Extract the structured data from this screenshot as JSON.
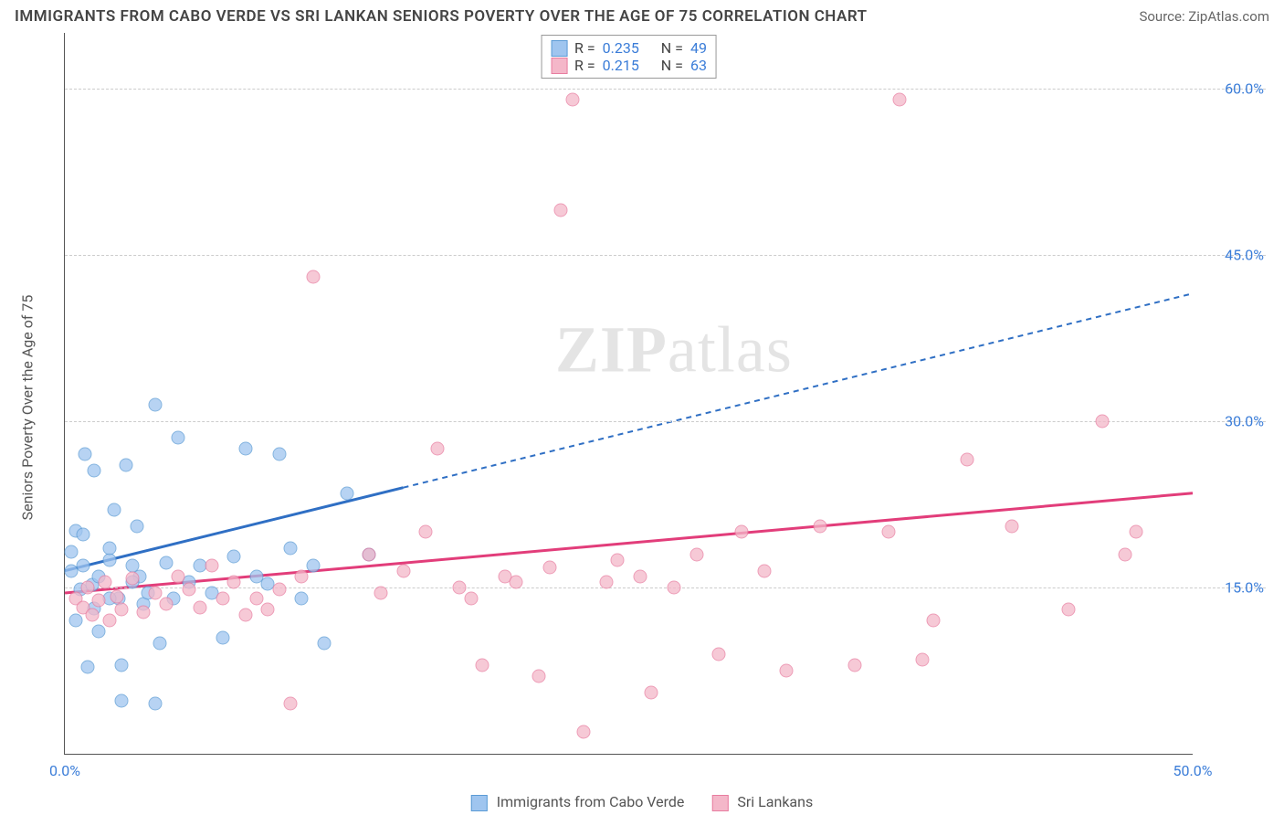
{
  "header": {
    "title": "IMMIGRANTS FROM CABO VERDE VS SRI LANKAN SENIORS POVERTY OVER THE AGE OF 75 CORRELATION CHART",
    "source": "Source: ZipAtlas.com"
  },
  "chart": {
    "type": "scatter",
    "y_label": "Seniors Poverty Over the Age of 75",
    "xlim": [
      0,
      50
    ],
    "ylim": [
      0,
      65
    ],
    "x_ticks": [
      {
        "v": 0,
        "label": "0.0%"
      },
      {
        "v": 50,
        "label": "50.0%"
      }
    ],
    "y_ticks": [
      {
        "v": 15,
        "label": "15.0%"
      },
      {
        "v": 30,
        "label": "30.0%"
      },
      {
        "v": 45,
        "label": "45.0%"
      },
      {
        "v": 60,
        "label": "60.0%"
      }
    ],
    "grid_color": "#cccccc",
    "background_color": "#ffffff",
    "axis_color": "#555555",
    "series": {
      "blue": {
        "label": "Immigrants from Cabo Verde",
        "fill": "#9fc5ef",
        "stroke": "#5b9bd5",
        "line_color": "#2f6fc4",
        "R_label": "R =",
        "R": "0.235",
        "N_label": "N =",
        "N": "49",
        "trend": {
          "x1": 0,
          "y1": 16.5,
          "x2": 50,
          "y2": 41.5,
          "solid_to_x": 15
        },
        "points": [
          [
            0.3,
            16.5
          ],
          [
            0.3,
            18.2
          ],
          [
            0.5,
            20.1
          ],
          [
            0.5,
            12.0
          ],
          [
            0.7,
            14.8
          ],
          [
            0.8,
            17.0
          ],
          [
            0.8,
            19.8
          ],
          [
            0.9,
            27.0
          ],
          [
            1.0,
            7.8
          ],
          [
            1.2,
            15.2
          ],
          [
            1.3,
            25.5
          ],
          [
            1.3,
            13.1
          ],
          [
            1.5,
            11.0
          ],
          [
            1.5,
            16.0
          ],
          [
            2.0,
            17.5
          ],
          [
            2.0,
            18.5
          ],
          [
            2.2,
            22.0
          ],
          [
            2.4,
            14.0
          ],
          [
            2.5,
            8.0
          ],
          [
            2.5,
            4.8
          ],
          [
            2.7,
            26.0
          ],
          [
            3.0,
            17.0
          ],
          [
            3.2,
            20.5
          ],
          [
            3.3,
            16.0
          ],
          [
            3.5,
            13.5
          ],
          [
            3.7,
            14.5
          ],
          [
            4.0,
            4.5
          ],
          [
            4.2,
            10.0
          ],
          [
            4.5,
            17.2
          ],
          [
            4.8,
            14.0
          ],
          [
            5.0,
            28.5
          ],
          [
            5.5,
            15.5
          ],
          [
            6.0,
            17.0
          ],
          [
            6.5,
            14.5
          ],
          [
            7.0,
            10.5
          ],
          [
            7.5,
            17.8
          ],
          [
            8.0,
            27.5
          ],
          [
            8.5,
            16.0
          ],
          [
            9.0,
            15.3
          ],
          [
            9.5,
            27.0
          ],
          [
            10.0,
            18.5
          ],
          [
            10.5,
            14.0
          ],
          [
            11.0,
            17.0
          ],
          [
            11.5,
            10.0
          ],
          [
            4.0,
            31.5
          ],
          [
            3.0,
            15.5
          ],
          [
            2.0,
            14.0
          ],
          [
            12.5,
            23.5
          ],
          [
            13.5,
            18.0
          ]
        ]
      },
      "pink": {
        "label": "Sri Lankans",
        "fill": "#f4b7c9",
        "stroke": "#e87da0",
        "line_color": "#e23d7a",
        "R_label": "R =",
        "R": "0.215",
        "N_label": "N =",
        "N": "63",
        "trend": {
          "x1": 0,
          "y1": 14.5,
          "x2": 50,
          "y2": 23.5,
          "solid_to_x": 50
        },
        "points": [
          [
            0.5,
            14.0
          ],
          [
            0.8,
            13.2
          ],
          [
            1.0,
            15.0
          ],
          [
            1.2,
            12.5
          ],
          [
            1.5,
            13.8
          ],
          [
            1.8,
            15.5
          ],
          [
            2.0,
            12.0
          ],
          [
            2.3,
            14.2
          ],
          [
            2.5,
            13.0
          ],
          [
            3.0,
            15.8
          ],
          [
            3.5,
            12.8
          ],
          [
            4.0,
            14.5
          ],
          [
            4.5,
            13.5
          ],
          [
            5.0,
            16.0
          ],
          [
            5.5,
            14.8
          ],
          [
            6.0,
            13.2
          ],
          [
            6.5,
            17.0
          ],
          [
            7.0,
            14.0
          ],
          [
            7.5,
            15.5
          ],
          [
            8.0,
            12.5
          ],
          [
            8.5,
            14.0
          ],
          [
            9.0,
            13.0
          ],
          [
            9.5,
            14.8
          ],
          [
            10.0,
            4.5
          ],
          [
            10.5,
            16.0
          ],
          [
            11.0,
            43.0
          ],
          [
            13.5,
            18.0
          ],
          [
            14.0,
            14.5
          ],
          [
            15.0,
            16.5
          ],
          [
            16.0,
            20.0
          ],
          [
            16.5,
            27.5
          ],
          [
            17.5,
            15.0
          ],
          [
            18.0,
            14.0
          ],
          [
            18.5,
            8.0
          ],
          [
            19.5,
            16.0
          ],
          [
            20.0,
            15.5
          ],
          [
            21.0,
            7.0
          ],
          [
            21.5,
            16.8
          ],
          [
            22.0,
            49.0
          ],
          [
            22.5,
            59.0
          ],
          [
            23.0,
            2.0
          ],
          [
            24.0,
            15.5
          ],
          [
            24.5,
            17.5
          ],
          [
            25.5,
            16.0
          ],
          [
            26.0,
            5.5
          ],
          [
            27.0,
            15.0
          ],
          [
            28.0,
            18.0
          ],
          [
            29.0,
            9.0
          ],
          [
            30.0,
            20.0
          ],
          [
            31.0,
            16.5
          ],
          [
            32.0,
            7.5
          ],
          [
            33.5,
            20.5
          ],
          [
            35.0,
            8.0
          ],
          [
            36.5,
            20.0
          ],
          [
            37.0,
            59.0
          ],
          [
            38.0,
            8.5
          ],
          [
            38.5,
            12.0
          ],
          [
            40.0,
            26.5
          ],
          [
            42.0,
            20.5
          ],
          [
            44.5,
            13.0
          ],
          [
            46.0,
            30.0
          ],
          [
            47.0,
            18.0
          ],
          [
            47.5,
            20.0
          ]
        ]
      }
    },
    "marker_radius": 7.5,
    "marker_opacity": 0.75,
    "line_width_solid": 3,
    "line_width_dashed": 2
  },
  "watermark": {
    "part1": "ZIP",
    "part2": "atlas"
  }
}
